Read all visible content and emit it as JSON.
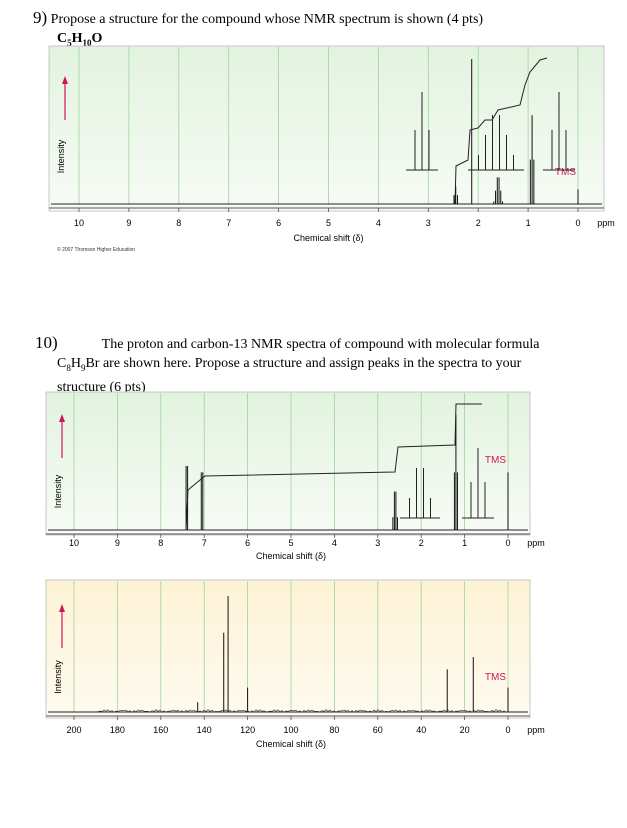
{
  "q9": {
    "number": "9)",
    "text": " Propose a structure for the compound whose NMR spectrum is shown (4 pts)",
    "formula_parts": [
      "C",
      "5",
      "H",
      "10",
      "O"
    ]
  },
  "q10": {
    "number": "10)",
    "text_line1": "The proton and carbon-13 NMR spectra of compound with molecular formula",
    "text_line2_pre": "C",
    "text_line2_sub1": "8",
    "text_line2_mid": "H",
    "text_line2_sub2": "9",
    "text_line2_post": "Br are shown here. Propose a structure and assign peaks in the spectra to your",
    "text_line3": "structure (6 pts)"
  },
  "copyright": "© 2007 Thomson Higher Education",
  "colors": {
    "arrow": "#d4145a",
    "tms": "#d4145a",
    "grid": "#9fd49a",
    "h_bg": "#eaf6e8",
    "c_bg": "#fdf0cc"
  },
  "chart_data": [
    {
      "type": "line",
      "nucleus": "1H",
      "xlabel": "Chemical shift (δ)",
      "ylabel": "Intensity",
      "tick_labels": [
        "10",
        "9",
        "8",
        "7",
        "6",
        "5",
        "4",
        "3",
        "2",
        "1",
        "0"
      ],
      "unit_label": "ppm",
      "xlim": [
        10,
        0
      ],
      "reference_label": "TMS",
      "peaks": [
        {
          "shift": 2.45,
          "multiplicity": "triplet",
          "height": 0.12
        },
        {
          "shift": 2.13,
          "multiplicity": "singlet",
          "height": 0.98
        },
        {
          "shift": 1.6,
          "multiplicity": "sextet",
          "height": 0.18
        },
        {
          "shift": 0.92,
          "multiplicity": "triplet",
          "height": 0.6
        },
        {
          "shift": 0.0,
          "multiplicity": "singlet",
          "height": 0.1
        }
      ]
    },
    {
      "type": "line",
      "nucleus": "1H",
      "xlabel": "Chemical shift (δ)",
      "ylabel": "Intensity",
      "tick_labels": [
        "10",
        "9",
        "8",
        "7",
        "6",
        "5",
        "4",
        "3",
        "2",
        "1",
        "0"
      ],
      "unit_label": "ppm",
      "xlim": [
        10,
        0
      ],
      "reference_label": "TMS",
      "peaks": [
        {
          "shift": 7.4,
          "multiplicity": "doublet",
          "height": 0.5
        },
        {
          "shift": 7.05,
          "multiplicity": "doublet",
          "height": 0.45
        },
        {
          "shift": 2.6,
          "multiplicity": "quartet",
          "height": 0.3
        },
        {
          "shift": 1.2,
          "multiplicity": "triplet",
          "height": 0.9
        },
        {
          "shift": 0.0,
          "multiplicity": "singlet",
          "height": 0.45
        }
      ]
    },
    {
      "type": "line",
      "nucleus": "13C",
      "xlabel": "Chemical shift (δ)",
      "ylabel": "Intensity",
      "tick_labels": [
        "200",
        "180",
        "160",
        "140",
        "120",
        "100",
        "80",
        "60",
        "40",
        "20",
        "0"
      ],
      "unit_label": "ppm",
      "xlim": [
        200,
        0
      ],
      "reference_label": "TMS",
      "peaks": [
        {
          "shift": 143,
          "height": 0.08
        },
        {
          "shift": 131,
          "height": 0.65
        },
        {
          "shift": 129,
          "height": 0.95
        },
        {
          "shift": 120,
          "height": 0.2
        },
        {
          "shift": 28,
          "height": 0.35
        },
        {
          "shift": 16,
          "height": 0.45
        },
        {
          "shift": 0,
          "height": 0.2
        }
      ]
    }
  ]
}
